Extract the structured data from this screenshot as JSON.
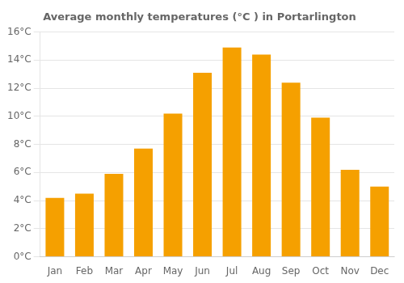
{
  "chart_data": {
    "type": "bar",
    "title": "Average monthly temperatures (°C ) in Portarlington",
    "categories": [
      "Jan",
      "Feb",
      "Mar",
      "Apr",
      "May",
      "Jun",
      "Jul",
      "Aug",
      "Sep",
      "Oct",
      "Nov",
      "Dec"
    ],
    "values": [
      4.2,
      4.5,
      5.9,
      7.7,
      10.2,
      13.1,
      14.9,
      14.4,
      12.4,
      9.9,
      6.2,
      5.0
    ],
    "color": "#F5A000",
    "ylim": [
      0,
      16
    ],
    "yticks": [
      {
        "value": 0,
        "label": "0°C"
      },
      {
        "value": 2,
        "label": "2°C"
      },
      {
        "value": 4,
        "label": "4°C"
      },
      {
        "value": 6,
        "label": "6°C"
      },
      {
        "value": 8,
        "label": "8°C"
      },
      {
        "value": 10,
        "label": "10°C"
      },
      {
        "value": 12,
        "label": "12°C"
      },
      {
        "value": 14,
        "label": "14°C"
      },
      {
        "value": 16,
        "label": "16°C"
      }
    ],
    "grid": true
  }
}
